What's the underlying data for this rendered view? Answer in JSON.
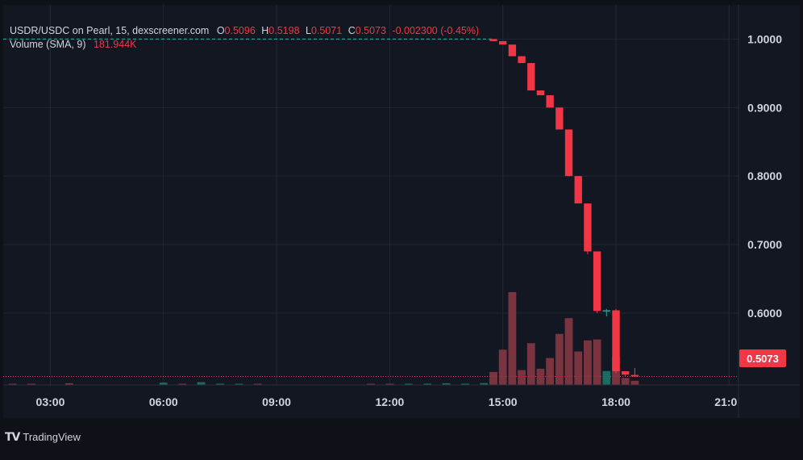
{
  "legend": {
    "title": "USDR/USDC on Pearl, 15, dexscreener.com",
    "o_label": "O",
    "o_value": "0.5096",
    "h_label": "H",
    "h_value": "0.5198",
    "l_label": "L",
    "l_value": "0.5071",
    "c_label": "C",
    "c_value": "0.5073",
    "change": "-0.002300 (-0.45%)",
    "volume_label": "Volume (SMA, 9)",
    "volume_value": "181.944K"
  },
  "price_label": "0.5073",
  "brand": "TradingView",
  "colors": {
    "background": "#131722",
    "up": "#26a69a",
    "down": "#f23645",
    "grid": "#232734",
    "text": "#d1d4dc",
    "ref_line": "#26a69a"
  },
  "chart_data": {
    "type": "candlestick",
    "title": "USDR/USDC on Pearl, 15, dexscreener.com",
    "x_unit": "hours",
    "x_ticks": [
      {
        "t": 3,
        "label": "03:00"
      },
      {
        "t": 6,
        "label": "06:00"
      },
      {
        "t": 9,
        "label": "09:00"
      },
      {
        "t": 12,
        "label": "12:00"
      },
      {
        "t": 15,
        "label": "15:00"
      },
      {
        "t": 18,
        "label": "18:00"
      },
      {
        "t": 21,
        "label": "21:0"
      }
    ],
    "y_ticks": [
      "0.6000",
      "0.7000",
      "0.8000",
      "0.9000",
      "1.0000"
    ],
    "y_tick_values": [
      0.6,
      0.7,
      0.8,
      0.9,
      1.0
    ],
    "ylim": [
      0.495,
      1.05
    ],
    "xlim": [
      1.75,
      21.25
    ],
    "last_price": 0.5073,
    "reference_price": 1.0,
    "candles": [
      {
        "t": 14.75,
        "o": 1.0,
        "h": 1.0,
        "l": 0.997,
        "c": 0.997
      },
      {
        "t": 15.0,
        "o": 0.997,
        "h": 0.997,
        "l": 0.992,
        "c": 0.992
      },
      {
        "t": 15.25,
        "o": 0.992,
        "h": 0.992,
        "l": 0.975,
        "c": 0.975
      },
      {
        "t": 15.5,
        "o": 0.975,
        "h": 0.975,
        "l": 0.965,
        "c": 0.965
      },
      {
        "t": 15.75,
        "o": 0.965,
        "h": 0.965,
        "l": 0.925,
        "c": 0.925
      },
      {
        "t": 16.0,
        "o": 0.925,
        "h": 0.925,
        "l": 0.918,
        "c": 0.918
      },
      {
        "t": 16.25,
        "o": 0.918,
        "h": 0.918,
        "l": 0.9,
        "c": 0.9
      },
      {
        "t": 16.5,
        "o": 0.9,
        "h": 0.9,
        "l": 0.868,
        "c": 0.868
      },
      {
        "t": 16.75,
        "o": 0.868,
        "h": 0.868,
        "l": 0.8,
        "c": 0.8
      },
      {
        "t": 17.0,
        "o": 0.8,
        "h": 0.8,
        "l": 0.76,
        "c": 0.76
      },
      {
        "t": 17.25,
        "o": 0.76,
        "h": 0.76,
        "l": 0.686,
        "c": 0.69
      },
      {
        "t": 17.5,
        "o": 0.69,
        "h": 0.69,
        "l": 0.6,
        "c": 0.603
      },
      {
        "t": 17.75,
        "o": 0.603,
        "h": 0.606,
        "l": 0.595,
        "c": 0.604
      },
      {
        "t": 18.0,
        "o": 0.604,
        "h": 0.606,
        "l": 0.512,
        "c": 0.515
      },
      {
        "t": 18.25,
        "o": 0.515,
        "h": 0.515,
        "l": 0.508,
        "c": 0.51
      },
      {
        "t": 18.5,
        "o": 0.5096,
        "h": 0.5198,
        "l": 0.5071,
        "c": 0.5073
      }
    ],
    "volume_max": 1000,
    "volume": [
      {
        "t": 2.0,
        "v": 8,
        "dir": "down"
      },
      {
        "t": 2.5,
        "v": 12,
        "dir": "down"
      },
      {
        "t": 3.5,
        "v": 18,
        "dir": "down"
      },
      {
        "t": 6.0,
        "v": 25,
        "dir": "up"
      },
      {
        "t": 6.5,
        "v": 10,
        "dir": "down"
      },
      {
        "t": 7.0,
        "v": 30,
        "dir": "up"
      },
      {
        "t": 7.5,
        "v": 14,
        "dir": "up"
      },
      {
        "t": 8.0,
        "v": 10,
        "dir": "up"
      },
      {
        "t": 8.5,
        "v": 8,
        "dir": "down"
      },
      {
        "t": 11.5,
        "v": 12,
        "dir": "down"
      },
      {
        "t": 12.0,
        "v": 12,
        "dir": "down"
      },
      {
        "t": 12.5,
        "v": 10,
        "dir": "up"
      },
      {
        "t": 13.0,
        "v": 14,
        "dir": "up"
      },
      {
        "t": 13.5,
        "v": 18,
        "dir": "up"
      },
      {
        "t": 14.0,
        "v": 14,
        "dir": "up"
      },
      {
        "t": 14.5,
        "v": 20,
        "dir": "up"
      },
      {
        "t": 14.75,
        "v": 140,
        "dir": "down"
      },
      {
        "t": 15.0,
        "v": 380,
        "dir": "down"
      },
      {
        "t": 15.25,
        "v": 1000,
        "dir": "down"
      },
      {
        "t": 15.5,
        "v": 160,
        "dir": "down"
      },
      {
        "t": 15.75,
        "v": 450,
        "dir": "down"
      },
      {
        "t": 16.0,
        "v": 175,
        "dir": "down"
      },
      {
        "t": 16.25,
        "v": 290,
        "dir": "down"
      },
      {
        "t": 16.5,
        "v": 550,
        "dir": "down"
      },
      {
        "t": 16.75,
        "v": 720,
        "dir": "down"
      },
      {
        "t": 17.0,
        "v": 360,
        "dir": "down"
      },
      {
        "t": 17.25,
        "v": 480,
        "dir": "down"
      },
      {
        "t": 17.5,
        "v": 490,
        "dir": "down"
      },
      {
        "t": 17.75,
        "v": 150,
        "dir": "up"
      },
      {
        "t": 18.0,
        "v": 310,
        "dir": "down"
      },
      {
        "t": 18.25,
        "v": 75,
        "dir": "down"
      },
      {
        "t": 18.5,
        "v": 45,
        "dir": "down"
      }
    ]
  }
}
